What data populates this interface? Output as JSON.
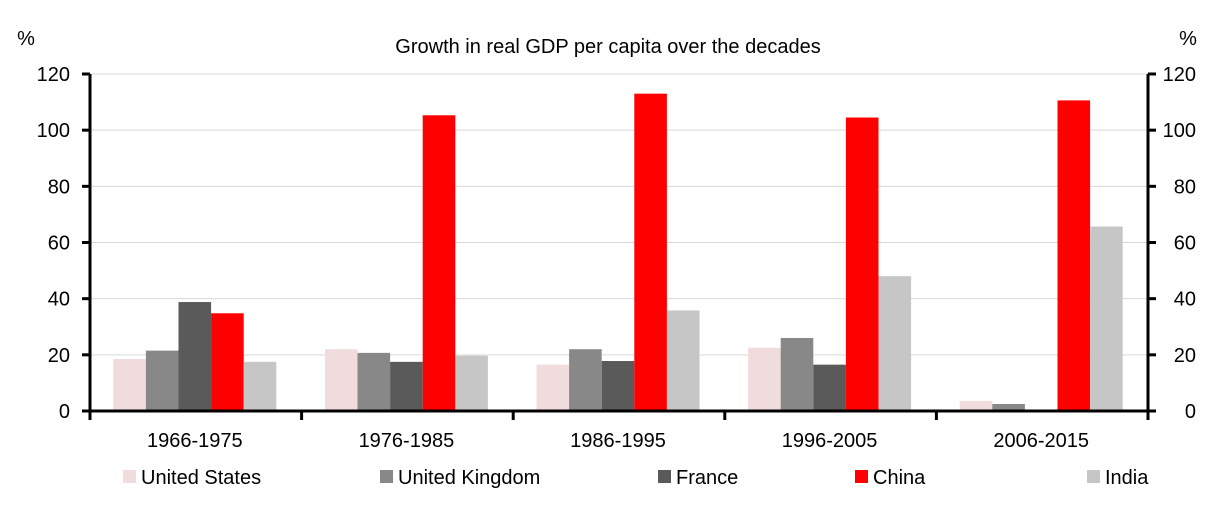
{
  "chart_data": {
    "type": "bar",
    "title": "Growth in real GDP per capita over the decades",
    "ylabel_left": "%",
    "ylabel_right": "%",
    "ylim": [
      0,
      120
    ],
    "yticks": [
      0,
      20,
      40,
      60,
      80,
      100,
      120
    ],
    "grid": true,
    "legend_position": "bottom",
    "categories": [
      "1966-1975",
      "1976-1985",
      "1986-1995",
      "1996-2005",
      "2006-2015"
    ],
    "series": [
      {
        "name": "United States",
        "color": "#f0dcdc",
        "values": [
          18.5,
          22,
          16.5,
          22.5,
          3.6
        ]
      },
      {
        "name": "United Kingdom",
        "color": "#888888",
        "values": [
          21.5,
          20.7,
          22,
          26,
          2.5
        ]
      },
      {
        "name": "France",
        "color": "#5a5a5a",
        "values": [
          38.8,
          17.5,
          17.8,
          16.5,
          0.5
        ]
      },
      {
        "name": "China",
        "color": "#ff0000",
        "values": [
          34.8,
          105.3,
          113,
          104.5,
          110.6
        ]
      },
      {
        "name": "India",
        "color": "#c6c6c6",
        "values": [
          17.5,
          19.7,
          35.8,
          48,
          65.7
        ]
      }
    ]
  }
}
